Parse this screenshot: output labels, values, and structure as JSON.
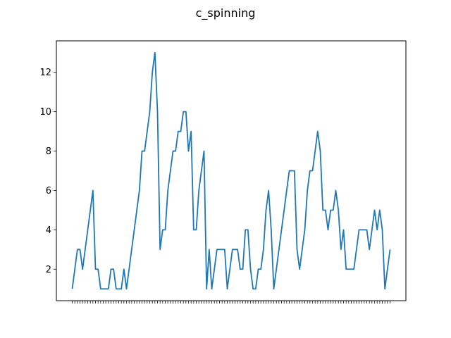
{
  "chart_data": {
    "type": "line",
    "title": "c_spinning",
    "xlabel": "",
    "ylabel": "",
    "ylim": [
      0.4,
      13.6
    ],
    "yticks": [
      2,
      4,
      6,
      8,
      10,
      12
    ],
    "grid": false,
    "legend": "none",
    "series": [
      {
        "color": "#1f77b4",
        "values": [
          1,
          2,
          3,
          3,
          2,
          3,
          4,
          5,
          6,
          2,
          2,
          1,
          1,
          1,
          1,
          2,
          2,
          1,
          1,
          1,
          2,
          1,
          2,
          3,
          4,
          5,
          6,
          8,
          8,
          9,
          10,
          12,
          13,
          10,
          3,
          4,
          4,
          6,
          7,
          8,
          8,
          9,
          9,
          10,
          10,
          8,
          9,
          4,
          4,
          6,
          7,
          8,
          1,
          3,
          1,
          2,
          3,
          3,
          3,
          3,
          1,
          2,
          3,
          3,
          3,
          2,
          2,
          4,
          4,
          2,
          1,
          1,
          2,
          2,
          3,
          5,
          6,
          4,
          1,
          2,
          3,
          4,
          5,
          6,
          7,
          7,
          7,
          3,
          2,
          3,
          4,
          6,
          7,
          7,
          8,
          9,
          8,
          5,
          5,
          4,
          5,
          5,
          6,
          5,
          3,
          4,
          2,
          2,
          2,
          2,
          3,
          4,
          4,
          4,
          4,
          3,
          4,
          5,
          4,
          5,
          4,
          1,
          2,
          3
        ]
      }
    ]
  }
}
